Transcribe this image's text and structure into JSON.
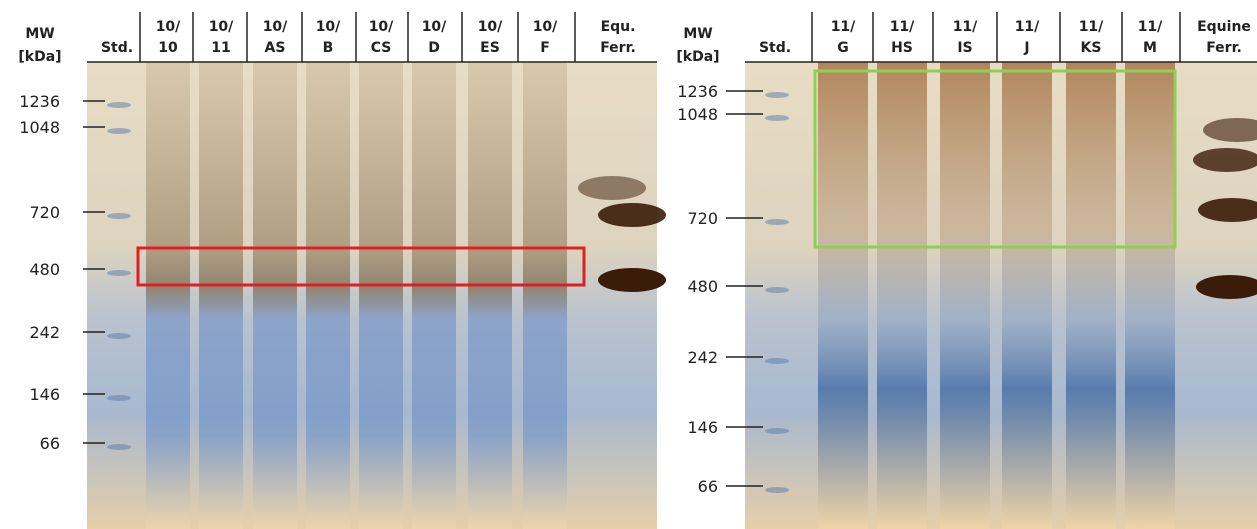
{
  "left": {
    "mw_label": [
      "MW",
      "[kDa]"
    ],
    "lanes": [
      [
        "Std."
      ],
      [
        "10/",
        "10"
      ],
      [
        "10/",
        "11"
      ],
      [
        "10/",
        "AS"
      ],
      [
        "10/",
        "B"
      ],
      [
        "10/",
        "CS"
      ],
      [
        "10/",
        "D"
      ],
      [
        "10/",
        "ES"
      ],
      [
        "10/",
        "F"
      ],
      [
        "Equ.",
        "Ferr."
      ]
    ],
    "markers": [
      "1236",
      "1048",
      "720",
      "480",
      "242",
      "146",
      "66"
    ]
  },
  "right": {
    "mw_label": [
      "MW",
      "[kDa]"
    ],
    "lanes": [
      [
        "Std."
      ],
      [
        "11/",
        "G"
      ],
      [
        "11/",
        "HS"
      ],
      [
        "11/",
        "IS"
      ],
      [
        "11/",
        "J"
      ],
      [
        "11/",
        "KS"
      ],
      [
        "11/",
        "M"
      ],
      [
        "Equine",
        "Ferr."
      ]
    ],
    "markers": [
      "1236",
      "1048",
      "720",
      "480",
      "242",
      "146",
      "66"
    ]
  }
}
